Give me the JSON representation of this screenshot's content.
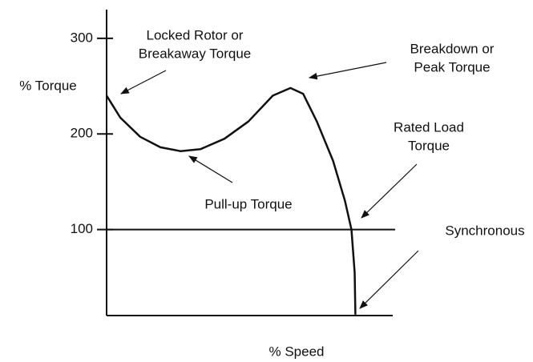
{
  "chart_data": {
    "type": "line",
    "ylabel": "% Torque",
    "xlabel": "% Speed",
    "xlim": [
      0,
      115
    ],
    "ylim": [
      10,
      330
    ],
    "yticks": [
      100,
      200,
      300
    ],
    "hlines": [
      100
    ],
    "series": [
      {
        "color": "#111111",
        "x": [
          0,
          5.5,
          13.5,
          21.6,
          29.7,
          37.7,
          47.4,
          57,
          66.8,
          73.9,
          79,
          84.5,
          91,
          95.8,
          98.4,
          99.7,
          100
        ],
        "values": [
          240,
          217,
          197,
          186,
          182,
          184,
          195,
          213,
          240,
          248,
          242,
          213,
          172,
          130,
          100,
          55,
          11
        ]
      }
    ],
    "annotations": [
      {
        "lines": [
          "Locked Rotor or",
          "Breakaway Torque"
        ]
      },
      {
        "lines": [
          "Breakdown or",
          "Peak Torque"
        ]
      },
      {
        "lines": [
          "Rated Load",
          "Torque"
        ]
      },
      {
        "lines": [
          "Pull-up Torque"
        ]
      },
      {
        "lines": [
          "Synchronous"
        ]
      }
    ]
  }
}
